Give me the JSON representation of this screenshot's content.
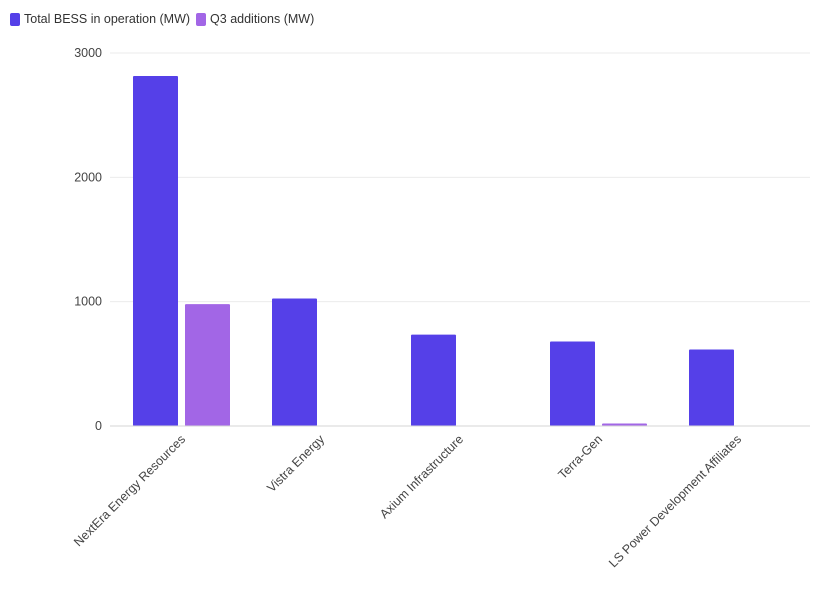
{
  "colors": {
    "series_1": "#5540e8",
    "series_2": "#a266e6",
    "grid": "#ebebeb",
    "axis_text": "#444444"
  },
  "legend": {
    "items": [
      {
        "label": "Total BESS in operation (MW)",
        "color": "#5540e8"
      },
      {
        "label": "Q3 additions (MW)",
        "color": "#a266e6"
      }
    ]
  },
  "chart_data": {
    "type": "bar",
    "title": "",
    "xlabel": "",
    "ylabel": "",
    "categories": [
      "NextEra Energy Resources",
      "Vistra Energy",
      "Axium Infrastructure",
      "Terra-Gen",
      "LS Power Development Affiliates"
    ],
    "series": [
      {
        "name": "Total BESS in operation (MW)",
        "values": [
          2815,
          1025,
          735,
          680,
          615
        ]
      },
      {
        "name": "Q3 additions (MW)",
        "values": [
          980,
          0,
          0,
          20,
          0
        ]
      }
    ],
    "ylim": [
      0,
      3000
    ],
    "yticks": [
      0,
      1000,
      2000,
      3000
    ],
    "grid": true,
    "legend_position": "top-left"
  }
}
